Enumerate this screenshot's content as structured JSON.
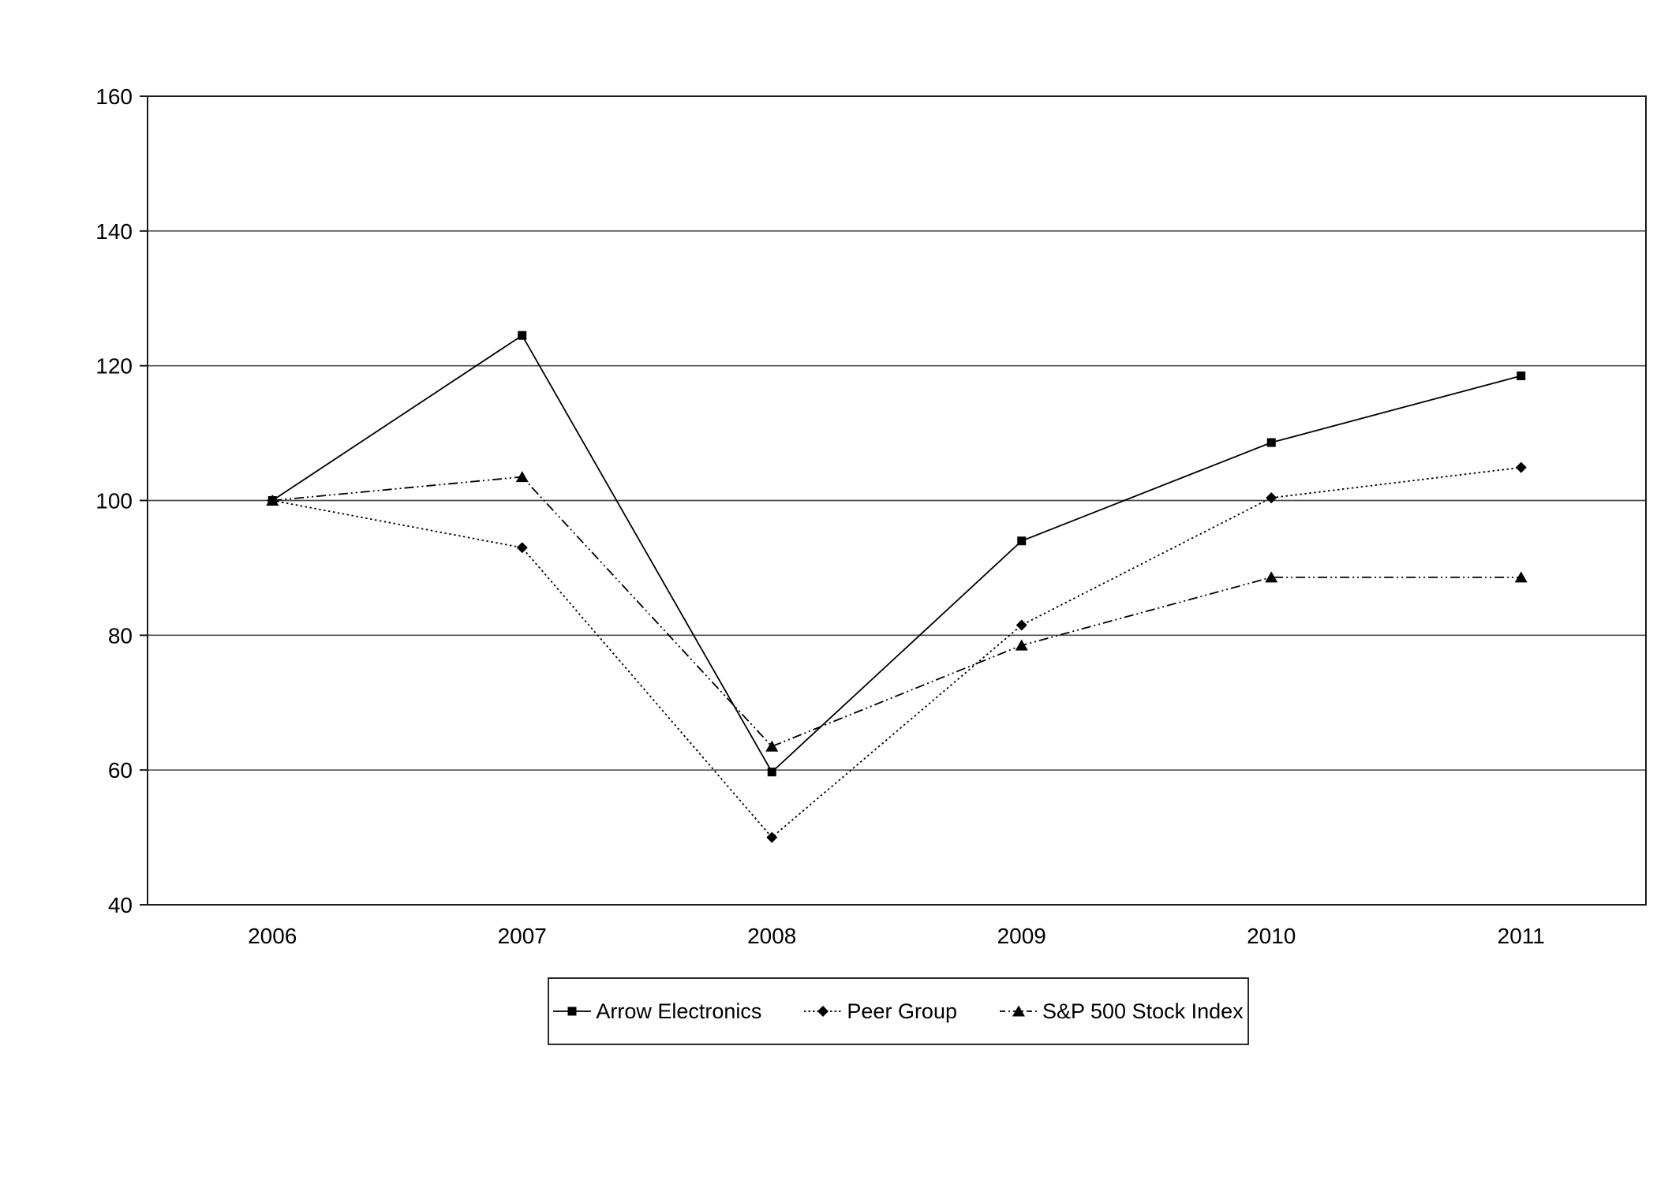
{
  "chart_data": {
    "type": "line",
    "title": "",
    "xlabel": "",
    "ylabel": "",
    "categories": [
      "2006",
      "2007",
      "2008",
      "2009",
      "2010",
      "2011"
    ],
    "series": [
      {
        "name": "Arrow Electronics",
        "marker": "square",
        "line_style": "solid",
        "values": [
          100,
          124.5,
          59.7,
          94,
          108.6,
          118.5
        ]
      },
      {
        "name": "Peer Group",
        "marker": "diamond",
        "line_style": "dotted",
        "values": [
          100,
          93,
          50,
          81.5,
          100.4,
          104.9
        ]
      },
      {
        "name": "S&P 500 Stock Index",
        "marker": "triangle",
        "line_style": "dash-dot-dot",
        "values": [
          100,
          103.5,
          63.5,
          78.5,
          88.6,
          88.6
        ]
      }
    ],
    "ylim": [
      40,
      160
    ],
    "ytick_step": 20,
    "ytick_labels": [
      "40",
      "60",
      "80",
      "100",
      "120",
      "140",
      "160"
    ],
    "grid": true,
    "legend_position": "bottom",
    "legend_items": [
      "Arrow Electronics",
      "Peer Group",
      "S&P 500 Stock Index"
    ],
    "colors": {
      "line": "#000000",
      "grid": "#4d4d4d",
      "axis": "#1a1a1a",
      "text": "#000000",
      "background": "#ffffff"
    }
  }
}
